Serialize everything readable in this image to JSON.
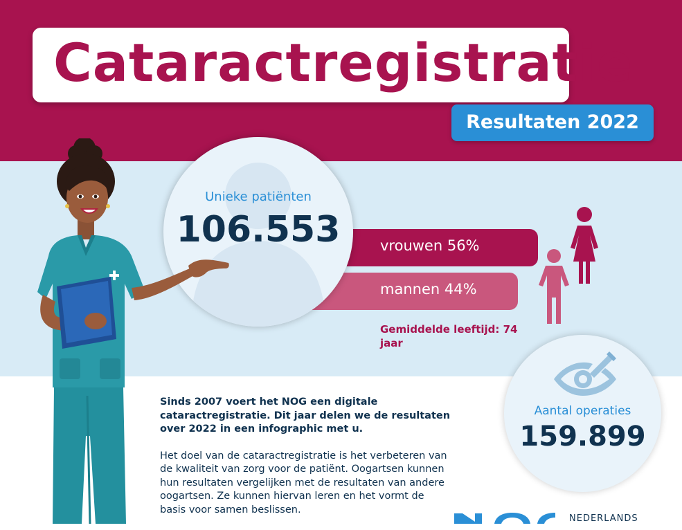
{
  "header": {
    "title": "Cataractregistratie",
    "subtitle": "Resultaten 2022"
  },
  "patients": {
    "label": "Unieke patiënten",
    "value": "106.553"
  },
  "gender": {
    "women_label": "vrouwen 56%",
    "men_label": "mannen 44%",
    "women_percent": 56,
    "men_percent": 44
  },
  "age": {
    "text": "Gemiddelde leeftijd: 74 jaar"
  },
  "operations": {
    "label": "Aantal operaties",
    "value": "159.899"
  },
  "intro": {
    "paragraph1": "Sinds 2007 voert het NOG een digitale cataractregistratie. Dit jaar delen we de resultaten over 2022 in een infographic met u.",
    "paragraph2": "Het doel van de cataractregistratie is het verbeteren van de kwaliteit van zorg voor de patiënt. Oogartsen kunnen hun resultaten vergelijken met de resultaten van andere oogartsen. Ze kunnen hiervan leren en het vormt de basis voor samen beslissen."
  },
  "logo": {
    "wordmark": "NEDERLANDS"
  },
  "colors": {
    "brand_magenta": "#a8134f",
    "men_pink": "#c9577d",
    "accent_blue": "#2a8fd6",
    "navy": "#10324f",
    "light_blue": "#d8ebf6"
  },
  "icons": {
    "patients": "person-silhouette-icon",
    "gender": "woman-child-icon",
    "operations": "eye-scalpel-icon",
    "logo": "nog-logo",
    "illustration": "nurse-illustration"
  }
}
